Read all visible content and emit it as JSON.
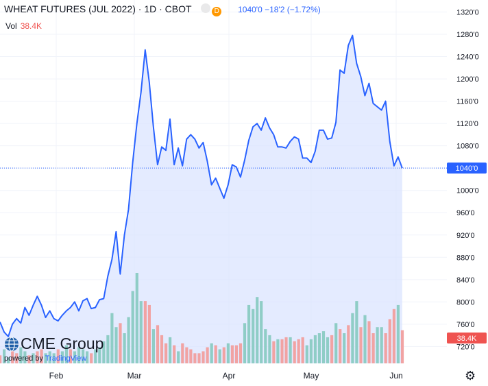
{
  "header": {
    "symbol": "WHEAT FUTURES (JUL 2022) · 1D · CBOT",
    "quote": "1040'0 −18'2 (−1.72%)",
    "status_letter": "D",
    "vol_label": "Vol",
    "vol_value": "38.4K"
  },
  "logo": {
    "name": "CME Group",
    "powered_by": "powered by",
    "tv": "TradingView"
  },
  "colors": {
    "line": "#2962ff",
    "area": "#dbe4ff",
    "vol_up": "#8fcdc6",
    "vol_down": "#f1a3a3",
    "last": "#2962ff",
    "vol_badge": "#ef5350"
  },
  "chart_data": {
    "type": "area",
    "symbol": "WHEAT FUTURES (JUL 2022)",
    "x_tick_labels": [
      "Feb",
      "Mar",
      "Apr",
      "May",
      "Jun"
    ],
    "y_tick_labels": [
      "720'0",
      "760'0",
      "800'0",
      "840'0",
      "880'0",
      "920'0",
      "960'0",
      "1000'0",
      "1040'0",
      "1080'0",
      "1120'0",
      "1160'0",
      "1200'0",
      "1240'0",
      "1280'0",
      "1320'0"
    ],
    "ylim": [
      708,
      1328
    ],
    "last_price_label": "1040'0",
    "volume_label": "38.4K",
    "price": [
      764,
      746,
      738,
      760,
      770,
      762,
      790,
      776,
      794,
      810,
      794,
      772,
      784,
      770,
      766,
      776,
      784,
      790,
      800,
      784,
      802,
      806,
      788,
      790,
      804,
      806,
      846,
      876,
      926,
      850,
      920,
      966,
      1050,
      1120,
      1176,
      1252,
      1194,
      1114,
      1046,
      1078,
      1072,
      1128,
      1046,
      1076,
      1044,
      1092,
      1100,
      1092,
      1076,
      1086,
      1052,
      1010,
      1022,
      1004,
      986,
      1010,
      1046,
      1042,
      1024,
      1054,
      1090,
      1114,
      1120,
      1108,
      1130,
      1112,
      1100,
      1078,
      1078,
      1076,
      1088,
      1096,
      1092,
      1058,
      1058,
      1050,
      1070,
      1108,
      1108,
      1092,
      1094,
      1122,
      1216,
      1210,
      1260,
      1278,
      1228,
      1204,
      1170,
      1192,
      1156,
      1150,
      1144,
      1160,
      1088,
      1044,
      1060,
      1040
    ],
    "volume_up": [
      0,
      1,
      1,
      0,
      0,
      1,
      1,
      0,
      1,
      0,
      0,
      1,
      1,
      1,
      0,
      1,
      1,
      0,
      1,
      1,
      1,
      1,
      0,
      1,
      1,
      1,
      1,
      1,
      1,
      0,
      1,
      1,
      1,
      1,
      1,
      0,
      0,
      1,
      0,
      0,
      0,
      1,
      0,
      1,
      0,
      0,
      0,
      0,
      0,
      0,
      0,
      1,
      0,
      1,
      0,
      1,
      0,
      0,
      0,
      1,
      1,
      1,
      1,
      1,
      1,
      1,
      0,
      1,
      0,
      0,
      1,
      0,
      0,
      0,
      1,
      1,
      1,
      1,
      1,
      1,
      0,
      1,
      0,
      1,
      0,
      1,
      1,
      0,
      1,
      0,
      0,
      1,
      1,
      0,
      0,
      0,
      1,
      0
    ],
    "volume_rel": [
      0.08,
      0.14,
      0.06,
      0.12,
      0.1,
      0.16,
      0.12,
      0.08,
      0.1,
      0.12,
      0.14,
      0.1,
      0.12,
      0.1,
      0.14,
      0.12,
      0.18,
      0.14,
      0.12,
      0.16,
      0.14,
      0.12,
      0.1,
      0.14,
      0.16,
      0.22,
      0.28,
      0.5,
      0.36,
      0.4,
      0.3,
      0.46,
      0.72,
      0.9,
      0.62,
      0.62,
      0.58,
      0.34,
      0.38,
      0.28,
      0.2,
      0.26,
      0.18,
      0.12,
      0.2,
      0.16,
      0.14,
      0.1,
      0.1,
      0.12,
      0.16,
      0.2,
      0.18,
      0.14,
      0.16,
      0.2,
      0.18,
      0.18,
      0.2,
      0.4,
      0.58,
      0.54,
      0.66,
      0.62,
      0.34,
      0.28,
      0.22,
      0.24,
      0.24,
      0.26,
      0.26,
      0.22,
      0.24,
      0.26,
      0.18,
      0.24,
      0.28,
      0.3,
      0.32,
      0.26,
      0.28,
      0.4,
      0.34,
      0.3,
      0.38,
      0.5,
      0.62,
      0.36,
      0.48,
      0.42,
      0.3,
      0.36,
      0.36,
      0.3,
      0.44,
      0.54,
      0.58,
      0.33
    ]
  }
}
